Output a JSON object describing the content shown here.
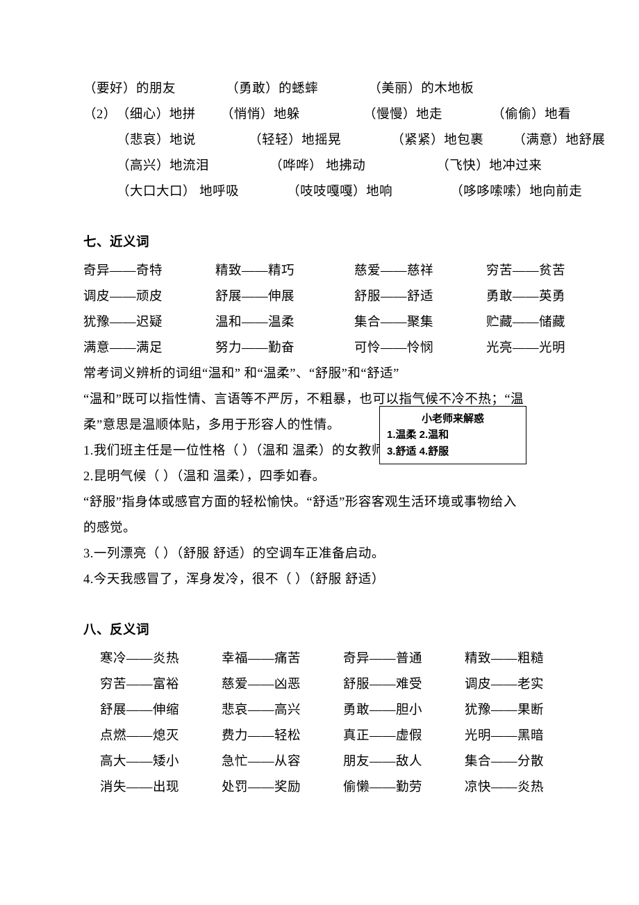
{
  "colors": {
    "text": "#000000",
    "background": "#ffffff",
    "callout_border": "#000000"
  },
  "typography": {
    "body_font": "SimSun",
    "body_size_pt": 14,
    "line_height": 2.0,
    "callout_font": "Microsoft YaHei",
    "callout_size_pt": 11,
    "callout_weight": "bold"
  },
  "top_block": {
    "row1": [
      "（要好）的朋友",
      "（勇敢）的蟋蟀",
      "（美丽）的木地板"
    ],
    "row2_prefix": "（2）",
    "row2": [
      "（细心）地拼",
      "（悄悄）地躲",
      "（慢慢）地走",
      "（偷偷）地看"
    ],
    "row3": [
      "（悲哀）地说",
      "（轻轻）地摇晃",
      "（紧紧）地包裹",
      "（满意）地舒展"
    ],
    "row4": [
      "（高兴）地流泪",
      "（哗哗）  地拂动",
      "（飞快）地冲过来"
    ],
    "row5": [
      "（大口大口）  地呼吸",
      "（吱吱嘎嘎）地响",
      "（哆哆嗦嗦）地向前走"
    ]
  },
  "section7": {
    "title": "七、近义词",
    "rows": [
      [
        "奇异——奇特",
        "精致——精巧",
        "慈爱——慈祥",
        "穷苦——贫苦"
      ],
      [
        "调皮——顽皮",
        "舒展——伸展",
        "舒服——舒适",
        "勇敢——英勇"
      ],
      [
        "犹豫——迟疑",
        "温和——温柔",
        "集合——聚集",
        "贮藏——储藏"
      ],
      [
        "满意——满足",
        "努力——勤奋",
        "可怜——怜悯",
        "光亮——光明"
      ]
    ],
    "note1": "常考词义辨析的词组“温和”  和“温柔”、“舒服”和“舒适”",
    "note2": "“温和”既可以指性情、言语等不严厉，不粗暴，也可以指气候不冷不热；“温",
    "note3": "柔”意思是温顺体贴，多用于形容人的性情。",
    "q1": "1.我们班主任是一位性格（      ）（温和   温柔）的女教师。",
    "q2": "2.昆明气候（      ）（温和   温柔），四季如春。",
    "note4": "“舒服”指身体或感官方面的轻松愉快。“舒适”形容客观生活环境或事物给入",
    "note5": "的感觉。",
    "q3": "3.一列漂亮（   ）（舒服   舒适）的空调车正准备启动。",
    "q4": "4.今天我感冒了，浑身发冷，很不（   ）（舒服   舒适）"
  },
  "callout": {
    "title": "小老师来解惑",
    "line1": "1.温柔   2.温和",
    "line2": "3.舒适   4.舒服"
  },
  "section8": {
    "title": "八、反义词",
    "rows": [
      [
        "寒冷——炎热",
        "幸福——痛苦",
        "奇异——普通",
        "精致——粗糙"
      ],
      [
        "穷苦——富裕",
        "慈爱——凶恶",
        "舒服——难受",
        "调皮——老实"
      ],
      [
        "舒展——伸缩",
        "悲哀——高兴",
        "勇敢——胆小",
        "犹豫——果断"
      ],
      [
        "点燃——熄灭",
        "费力——轻松",
        "真正——虚假",
        "光明——黑暗"
      ],
      [
        "高大——矮小",
        "急忙——从容",
        "朋友——敌人",
        "集合——分散"
      ],
      [
        "消失——出现",
        "处罚——奖励",
        "偷懒——勤劳",
        "凉快——炎热"
      ]
    ]
  }
}
